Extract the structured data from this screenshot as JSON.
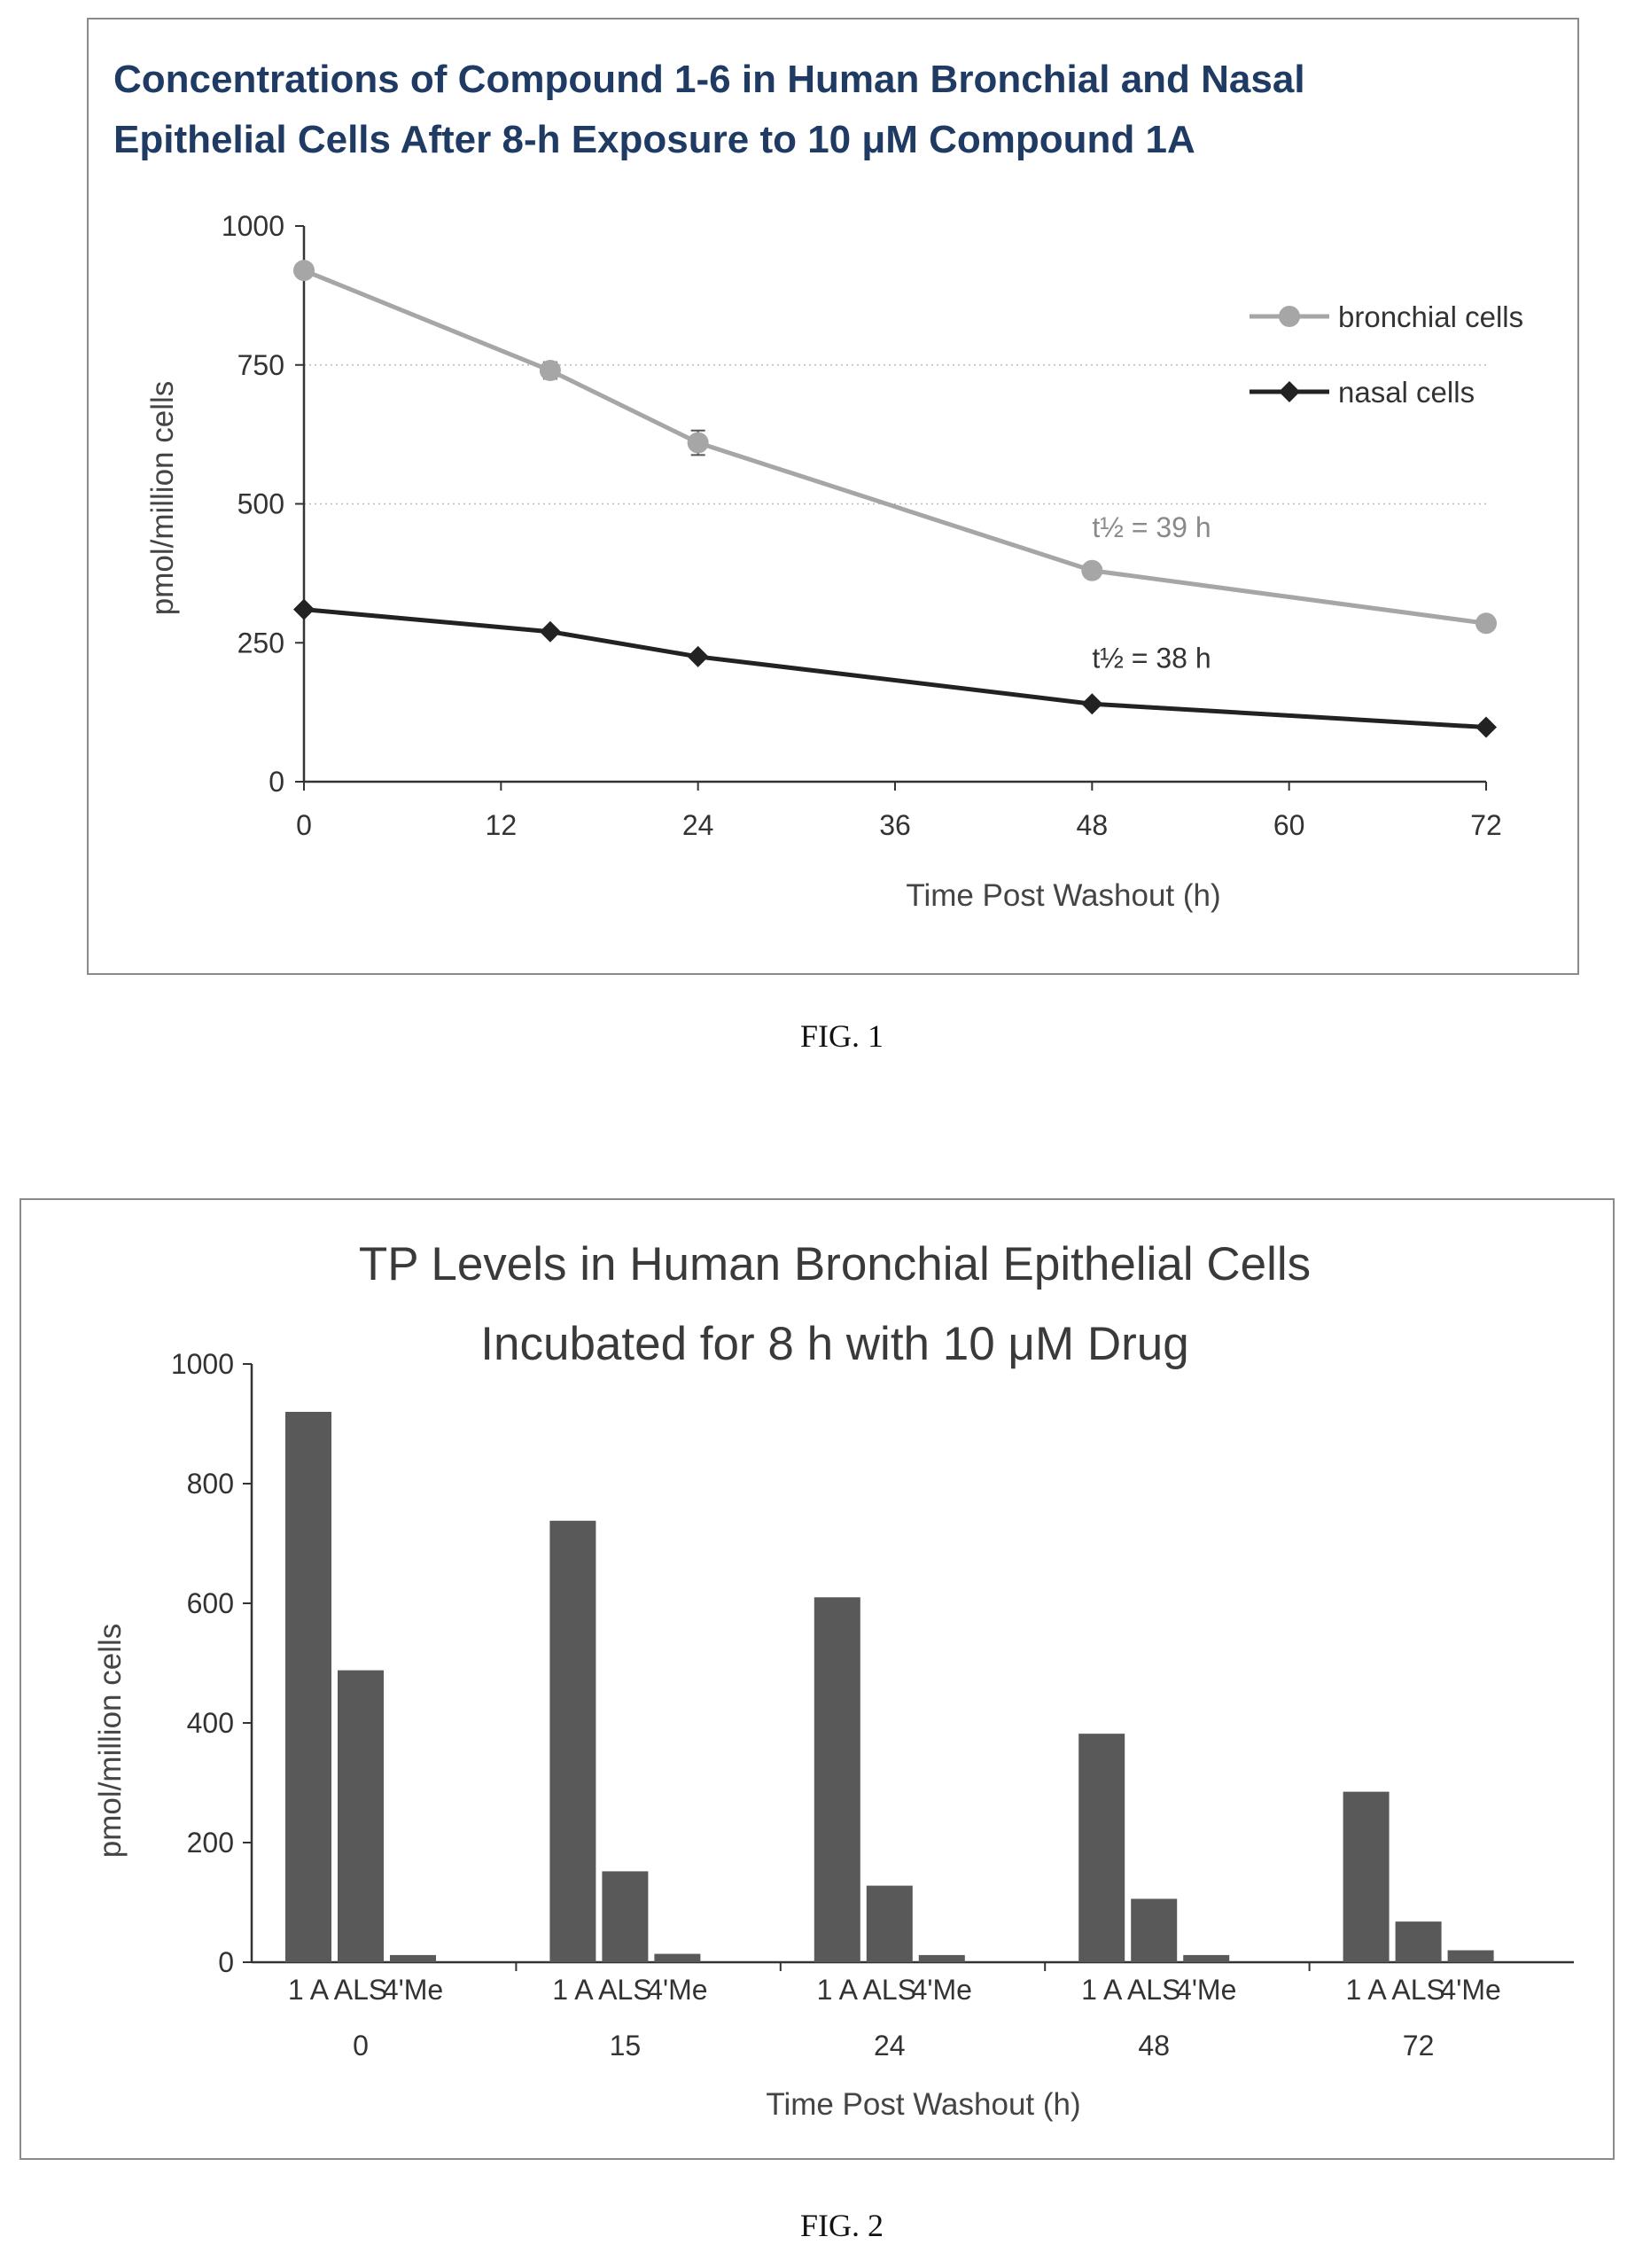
{
  "figures": [
    {
      "caption": "FIG. 1"
    },
    {
      "caption": "FIG. 2"
    }
  ],
  "chart_data": [
    {
      "type": "line",
      "title_lines": [
        "Concentrations of Compound 1-6 in Human Bronchial and Nasal",
        "Epithelial Cells After 8-h Exposure to 10 μM Compound 1A"
      ],
      "xlabel": "Time Post Washout (h)",
      "ylabel": "pmol/million cells",
      "xlim": [
        0,
        72
      ],
      "ylim": [
        0,
        1000
      ],
      "xticks": [
        "0",
        "12",
        "24",
        "36",
        "48",
        "60",
        "72"
      ],
      "yticks": [
        "0",
        "250",
        "500",
        "750",
        "1000"
      ],
      "grid": "horizontal dotted at 500 and 750",
      "legend_position": "top-right",
      "series": [
        {
          "name": "bronchial cells",
          "color": "#a6a6a6",
          "marker": "circle",
          "x": [
            0,
            15,
            24,
            48,
            72
          ],
          "y": [
            920,
            740,
            610,
            380,
            285
          ],
          "error": [
            0,
            15,
            22,
            0,
            0
          ]
        },
        {
          "name": "nasal cells",
          "color": "#222222",
          "marker": "diamond",
          "x": [
            0,
            15,
            24,
            48,
            72
          ],
          "y": [
            310,
            270,
            225,
            140,
            98
          ],
          "error": [
            0,
            0,
            0,
            0,
            0
          ]
        }
      ],
      "annotations": [
        {
          "text": "t½ = 39 h",
          "x": 48,
          "y": 440,
          "color": "#8a8a8a"
        },
        {
          "text": "t½ = 38 h",
          "x": 48,
          "y": 205,
          "color": "#333333"
        }
      ]
    },
    {
      "type": "bar",
      "title_lines": [
        "TP Levels in Human Bronchial Epithelial Cells",
        "Incubated for 8 h with 10 μM Drug"
      ],
      "xlabel": "Time Post Washout (h)",
      "ylabel": "pmol/million cells",
      "ylim": [
        0,
        1000
      ],
      "yticks": [
        "0",
        "200",
        "400",
        "600",
        "800",
        "1000"
      ],
      "categories": [
        "0",
        "15",
        "24",
        "48",
        "72"
      ],
      "sub_labels": [
        "1 A",
        "ALS",
        "4'Me"
      ],
      "bar_color": "#595959",
      "series": [
        {
          "name": "1 A",
          "values": [
            920,
            738,
            610,
            382,
            285
          ]
        },
        {
          "name": "ALS",
          "values": [
            488,
            152,
            128,
            106,
            68
          ]
        },
        {
          "name": "4'Me",
          "values": [
            12,
            14,
            12,
            12,
            20
          ]
        }
      ]
    }
  ]
}
